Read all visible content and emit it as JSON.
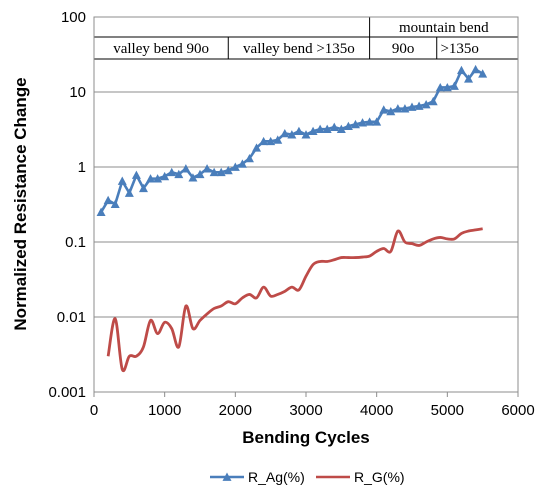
{
  "chart_data": {
    "type": "line",
    "xlabel": "Bending Cycles",
    "ylabel": "Normalized Resistance Change",
    "xlim": [
      0,
      6000
    ],
    "ylim": [
      0.001,
      100
    ],
    "y_scale": "log",
    "x_ticks": [
      "0",
      "1000",
      "2000",
      "3000",
      "4000",
      "5000",
      "6000"
    ],
    "y_ticks": [
      "0.001",
      "0.01",
      "0.1",
      "1",
      "10",
      "100"
    ],
    "grid": "horizontal major gridlines",
    "legend_position": "bottom",
    "annotations": {
      "header": "mountain bend",
      "bands": [
        {
          "label": "valley bend 90o",
          "x_from": 0,
          "x_to": 1900
        },
        {
          "label": "valley bend >135o",
          "x_from": 1900,
          "x_to": 3900
        },
        {
          "label": "90o",
          "x_from": 3900,
          "x_to": 4850
        },
        {
          "label": ">135o",
          "x_from": 4850,
          "x_to": 5500
        }
      ]
    },
    "series": [
      {
        "name": "R_Ag(%)",
        "color": "#4a7ebb",
        "marker": "triangle",
        "x": [
          100,
          200,
          300,
          400,
          500,
          600,
          700,
          800,
          900,
          1000,
          1100,
          1200,
          1300,
          1400,
          1500,
          1600,
          1700,
          1800,
          1900,
          2000,
          2100,
          2200,
          2300,
          2400,
          2500,
          2600,
          2700,
          2800,
          2900,
          3000,
          3100,
          3200,
          3300,
          3400,
          3500,
          3600,
          3700,
          3800,
          3900,
          4000,
          4100,
          4200,
          4300,
          4400,
          4500,
          4600,
          4700,
          4800,
          4900,
          5000,
          5100,
          5200,
          5300,
          5400,
          5500
        ],
        "y": [
          0.25,
          0.36,
          0.32,
          0.65,
          0.45,
          0.78,
          0.52,
          0.7,
          0.7,
          0.75,
          0.85,
          0.8,
          0.95,
          0.72,
          0.8,
          0.95,
          0.85,
          0.85,
          0.9,
          1.0,
          1.1,
          1.3,
          1.8,
          2.2,
          2.2,
          2.3,
          2.8,
          2.7,
          3.0,
          2.7,
          3.0,
          3.2,
          3.2,
          3.4,
          3.2,
          3.5,
          3.7,
          3.9,
          4.0,
          4.0,
          5.8,
          5.5,
          6.0,
          6.0,
          6.3,
          6.5,
          6.8,
          7.5,
          11.5,
          11.5,
          12.0,
          19.5,
          15.0,
          20.0,
          17.5
        ]
      },
      {
        "name": "R_G(%)",
        "color": "#be4b48",
        "marker": "none",
        "x": [
          200,
          300,
          400,
          500,
          600,
          700,
          800,
          900,
          1000,
          1100,
          1200,
          1300,
          1400,
          1500,
          1600,
          1700,
          1800,
          1900,
          2000,
          2100,
          2200,
          2300,
          2400,
          2500,
          2600,
          2700,
          2800,
          2900,
          3000,
          3100,
          3200,
          3300,
          3400,
          3500,
          3600,
          3700,
          3800,
          3900,
          4000,
          4100,
          4200,
          4300,
          4400,
          4500,
          4600,
          4700,
          4800,
          4900,
          5000,
          5100,
          5200,
          5300,
          5400,
          5500
        ],
        "y": [
          0.003,
          0.0095,
          0.002,
          0.003,
          0.003,
          0.004,
          0.009,
          0.006,
          0.0085,
          0.007,
          0.004,
          0.014,
          0.007,
          0.009,
          0.011,
          0.013,
          0.014,
          0.016,
          0.015,
          0.018,
          0.02,
          0.018,
          0.025,
          0.019,
          0.02,
          0.022,
          0.025,
          0.023,
          0.035,
          0.05,
          0.055,
          0.055,
          0.058,
          0.062,
          0.062,
          0.062,
          0.063,
          0.065,
          0.075,
          0.082,
          0.075,
          0.14,
          0.1,
          0.095,
          0.09,
          0.1,
          0.11,
          0.115,
          0.11,
          0.11,
          0.13,
          0.14,
          0.145,
          0.15
        ]
      }
    ]
  }
}
